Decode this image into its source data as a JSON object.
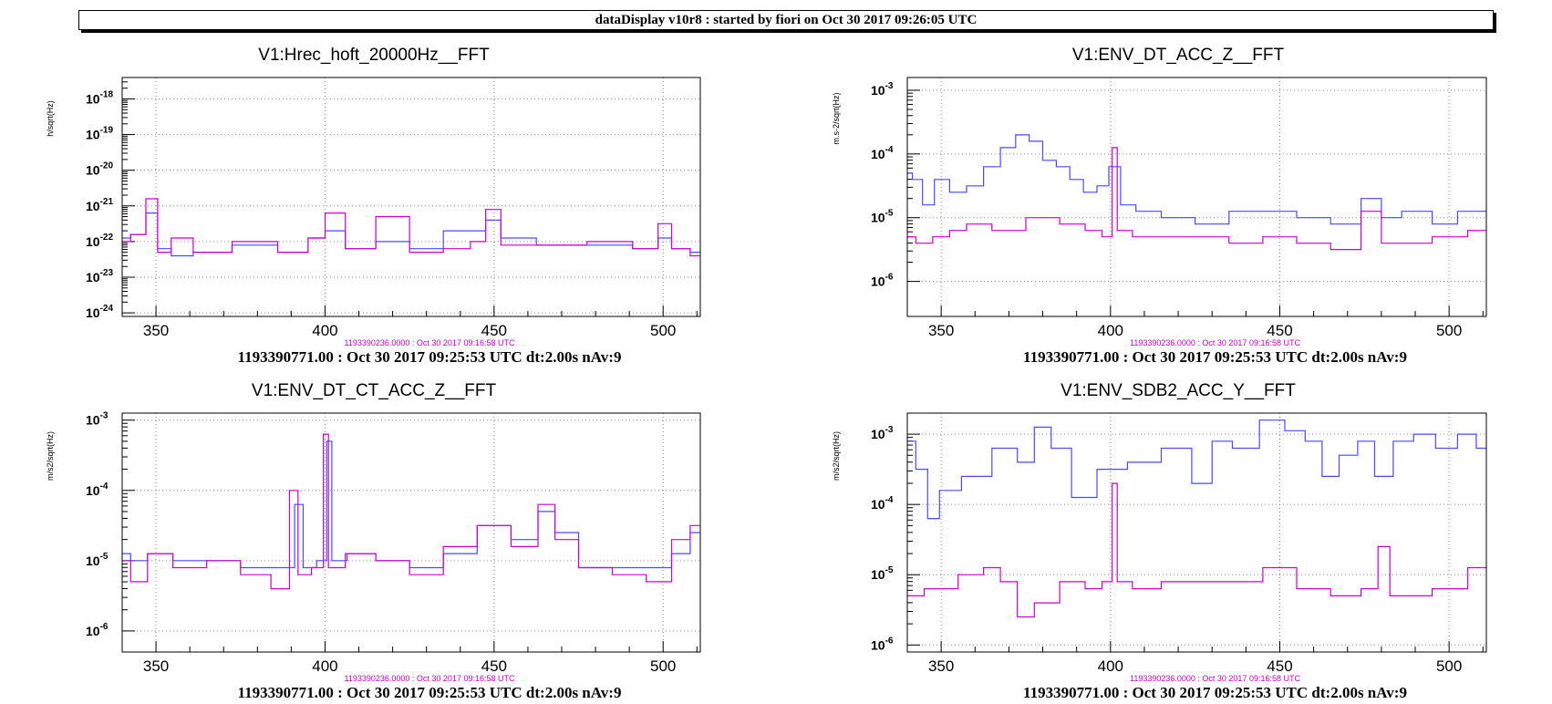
{
  "header": {
    "title": "dataDisplay v10r8 : started by fiori on Oct 30 2017 09:26:05 UTC"
  },
  "colors": {
    "live": "#4a4aff",
    "reference": "#cc00cc"
  },
  "chart_data": [
    {
      "type": "line",
      "title": "V1:Hrec_hoft_20000Hz__FFT",
      "ylabel": "h/sqrt(Hz)",
      "log_y": true,
      "grid": true,
      "xlim": [
        340,
        511
      ],
      "ylim_exp": [
        -24.1,
        -17.4
      ],
      "xticks": [
        350,
        400,
        450,
        500
      ],
      "yticks_exp": [
        -24,
        -23,
        -22,
        -21,
        -20,
        -19,
        -18
      ],
      "reference_label": "1193390236.0000 : Oct 30 2017 09:16:58 UTC",
      "footer": "1193390771.00 : Oct 30 2017 09:25:53 UTC dt:2.00s nAv:9",
      "series": [
        {
          "x": [
            340,
            345,
            349,
            352,
            357,
            365,
            380,
            392,
            398,
            402,
            410,
            420,
            430,
            440,
            446,
            449,
            455,
            470,
            485,
            497,
            500,
            505,
            511
          ],
          "y": [
            -21.9,
            -21.8,
            -21.2,
            -22.2,
            -22.4,
            -22.3,
            -22.1,
            -22.3,
            -21.9,
            -21.7,
            -22.2,
            -22.0,
            -22.2,
            -21.7,
            -21.7,
            -21.4,
            -21.9,
            -22.1,
            -22.1,
            -22.2,
            -21.9,
            -22.2,
            -22.3
          ]
        },
        {
          "x": [
            340,
            345,
            349,
            352,
            357,
            365,
            380,
            392,
            398,
            402,
            410,
            420,
            430,
            440,
            446,
            449,
            455,
            470,
            485,
            497,
            500,
            505,
            511
          ],
          "y": [
            -22.0,
            -21.8,
            -20.8,
            -22.3,
            -21.9,
            -22.3,
            -22.0,
            -22.3,
            -21.9,
            -21.2,
            -22.2,
            -21.3,
            -22.3,
            -22.2,
            -22.0,
            -21.1,
            -22.1,
            -22.1,
            -22.0,
            -22.2,
            -21.5,
            -22.2,
            -22.4
          ]
        }
      ]
    },
    {
      "type": "line",
      "title": "V1:ENV_DT_ACC_Z__FFT",
      "ylabel": "m.s-2/sqrt(Hz)",
      "log_y": true,
      "grid": true,
      "xlim": [
        340,
        511
      ],
      "ylim_exp": [
        -6.55,
        -2.8
      ],
      "xticks": [
        350,
        400,
        450,
        500
      ],
      "yticks_exp": [
        -6,
        -5,
        -4,
        -3
      ],
      "reference_label": "1193390236.0000 : Oct 30 2017 09:16:58 UTC",
      "footer": "1193390771.00 : Oct 30 2017 09:25:53 UTC dt:2.00s nAv:9",
      "series": [
        {
          "x": [
            340,
            343,
            346,
            350,
            355,
            360,
            365,
            370,
            374,
            378,
            382,
            386,
            390,
            394,
            398,
            401,
            405,
            410,
            420,
            430,
            440,
            450,
            460,
            470,
            478,
            482,
            490,
            500,
            505,
            511
          ],
          "y": [
            -4.3,
            -4.4,
            -4.8,
            -4.4,
            -4.6,
            -4.5,
            -4.2,
            -3.9,
            -3.7,
            -3.8,
            -4.1,
            -4.2,
            -4.4,
            -4.6,
            -4.5,
            -4.2,
            -4.8,
            -4.9,
            -5.0,
            -5.1,
            -4.9,
            -4.9,
            -5.0,
            -5.1,
            -4.7,
            -5.0,
            -4.9,
            -5.1,
            -4.9,
            -4.9
          ]
        },
        {
          "x": [
            340,
            345,
            350,
            355,
            360,
            370,
            380,
            390,
            395,
            400,
            401,
            403,
            410,
            420,
            430,
            440,
            450,
            460,
            470,
            478,
            482,
            490,
            500,
            511
          ],
          "y": [
            -5.3,
            -5.4,
            -5.3,
            -5.2,
            -5.1,
            -5.2,
            -5.0,
            -5.1,
            -5.2,
            -5.3,
            -3.9,
            -5.2,
            -5.3,
            -5.3,
            -5.3,
            -5.4,
            -5.3,
            -5.4,
            -5.5,
            -4.9,
            -5.4,
            -5.4,
            -5.3,
            -5.2
          ]
        }
      ]
    },
    {
      "type": "line",
      "title": "V1:ENV_DT_CT_ACC_Z__FFT",
      "ylabel": "m/s2/sqrt(Hz)",
      "log_y": true,
      "grid": true,
      "xlim": [
        340,
        511
      ],
      "ylim_exp": [
        -6.3,
        -2.9
      ],
      "xticks": [
        350,
        400,
        450,
        500
      ],
      "yticks_exp": [
        -6,
        -5,
        -4,
        -3
      ],
      "reference_label": "1193390236.0000 : Oct 30 2017 09:16:58 UTC",
      "footer": "1193390771.00 : Oct 30 2017 09:25:53 UTC dt:2.00s nAv:9",
      "series": [
        {
          "x": [
            340,
            345,
            350,
            360,
            370,
            380,
            390,
            392,
            395,
            400,
            401,
            403,
            410,
            420,
            430,
            440,
            450,
            460,
            466,
            470,
            480,
            490,
            500,
            505,
            511
          ],
          "y": [
            -4.9,
            -5.0,
            -4.9,
            -5.0,
            -5.0,
            -5.1,
            -5.1,
            -4.2,
            -5.1,
            -5.0,
            -3.3,
            -5.0,
            -4.9,
            -5.0,
            -5.1,
            -4.9,
            -4.5,
            -4.7,
            -4.3,
            -4.6,
            -5.1,
            -5.1,
            -5.1,
            -4.9,
            -4.6
          ]
        },
        {
          "x": [
            340,
            345,
            350,
            360,
            370,
            380,
            388,
            391,
            393,
            399,
            400,
            402,
            410,
            420,
            430,
            440,
            450,
            460,
            466,
            470,
            480,
            490,
            500,
            505,
            511
          ],
          "y": [
            -5.0,
            -5.3,
            -4.9,
            -5.1,
            -5.0,
            -5.2,
            -5.4,
            -4.0,
            -5.2,
            -5.1,
            -3.2,
            -5.1,
            -4.9,
            -5.0,
            -5.2,
            -4.8,
            -4.5,
            -4.8,
            -4.2,
            -4.7,
            -5.1,
            -5.2,
            -5.3,
            -4.7,
            -4.5
          ]
        }
      ]
    },
    {
      "type": "line",
      "title": "V1:ENV_SDB2_ACC_Y__FFT",
      "ylabel": "m/s2/sqrt(Hz)",
      "log_y": true,
      "grid": true,
      "xlim": [
        340,
        511
      ],
      "ylim_exp": [
        -6.1,
        -2.7
      ],
      "xticks": [
        350,
        400,
        450,
        500
      ],
      "yticks_exp": [
        -6,
        -5,
        -4,
        -3
      ],
      "reference_label": "1193390236.0000 : Oct 30 2017 09:16:58 UTC",
      "footer": "1193390771.00 : Oct 30 2017 09:25:53 UTC dt:2.00s nAv:9",
      "series": [
        {
          "x": [
            340,
            345,
            347,
            352,
            360,
            370,
            375,
            380,
            385,
            392,
            400,
            410,
            420,
            428,
            432,
            440,
            448,
            455,
            460,
            465,
            470,
            476,
            480,
            487,
            492,
            500,
            505,
            511
          ],
          "y": [
            -3.1,
            -3.5,
            -4.2,
            -3.8,
            -3.6,
            -3.2,
            -3.4,
            -2.9,
            -3.2,
            -3.9,
            -3.5,
            -3.4,
            -3.2,
            -3.7,
            -3.1,
            -3.2,
            -2.8,
            -2.95,
            -3.1,
            -3.6,
            -3.3,
            -3.1,
            -3.6,
            -3.1,
            -3.0,
            -3.2,
            -3.0,
            -3.2
          ]
        },
        {
          "x": [
            340,
            350,
            360,
            365,
            370,
            375,
            380,
            390,
            395,
            400,
            401,
            403,
            410,
            420,
            430,
            440,
            450,
            460,
            470,
            478,
            480,
            485,
            490,
            500,
            511
          ],
          "y": [
            -5.3,
            -5.2,
            -5.0,
            -4.9,
            -5.1,
            -5.6,
            -5.4,
            -5.1,
            -5.2,
            -5.1,
            -3.7,
            -5.1,
            -5.2,
            -5.1,
            -5.1,
            -5.1,
            -4.9,
            -5.2,
            -5.3,
            -5.2,
            -4.6,
            -5.3,
            -5.3,
            -5.2,
            -4.9
          ]
        }
      ]
    }
  ]
}
